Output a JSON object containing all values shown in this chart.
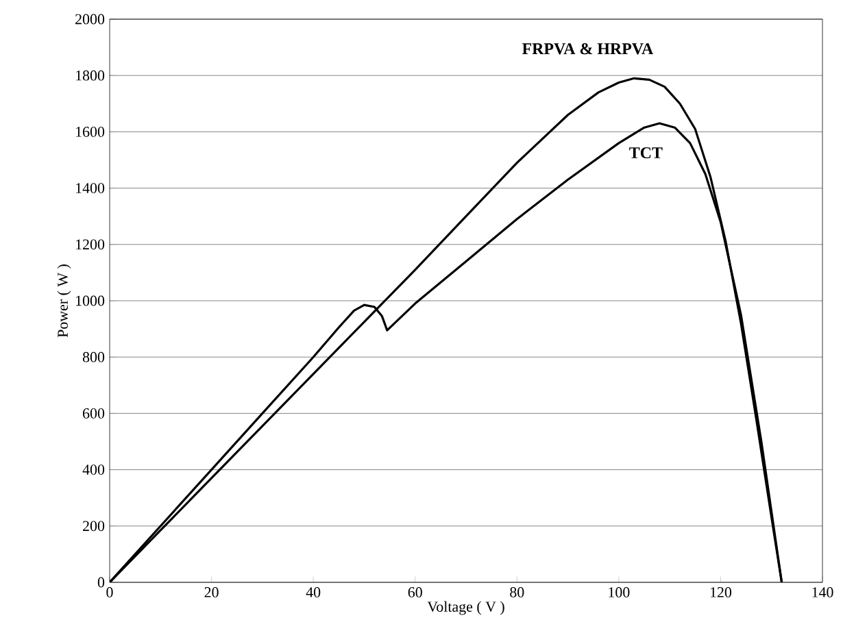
{
  "chart_data": {
    "type": "line",
    "xlabel": "Voltage ( V )",
    "ylabel": "Power ( W )",
    "xlim": [
      0,
      140
    ],
    "xticks": [
      0,
      20,
      40,
      60,
      80,
      100,
      120,
      140
    ],
    "ylim": [
      0,
      2000
    ],
    "yticks": [
      0,
      200,
      400,
      600,
      800,
      1000,
      1200,
      1400,
      1600,
      1800,
      2000
    ],
    "grid": "y",
    "marker": "none",
    "line_style": "solid",
    "series": [
      {
        "name": "**FRPVA & HRPVA**",
        "color": "#000000",
        "x": [
          0,
          10,
          20,
          30,
          40,
          50,
          60,
          70,
          80,
          90,
          96,
          100,
          103,
          106,
          109,
          112,
          115,
          118,
          121,
          124,
          127,
          130,
          132
        ],
        "values": [
          0,
          185,
          370,
          555,
          740,
          925,
          1110,
          1300,
          1490,
          1660,
          1740,
          1775,
          1790,
          1785,
          1760,
          1700,
          1610,
          1440,
          1210,
          920,
          580,
          230,
          0
        ]
      },
      {
        "name": "**TCT**",
        "color": "#000000",
        "x": [
          0,
          10,
          20,
          30,
          40,
          45,
          48,
          50,
          52,
          53.5,
          54.5,
          60,
          70,
          80,
          90,
          100,
          105,
          108,
          111,
          114,
          117,
          120,
          124,
          128,
          132
        ],
        "values": [
          0,
          200,
          400,
          600,
          800,
          905,
          965,
          985,
          978,
          945,
          895,
          990,
          1140,
          1290,
          1430,
          1560,
          1615,
          1630,
          1615,
          1560,
          1450,
          1280,
          950,
          500,
          0
        ]
      }
    ]
  }
}
